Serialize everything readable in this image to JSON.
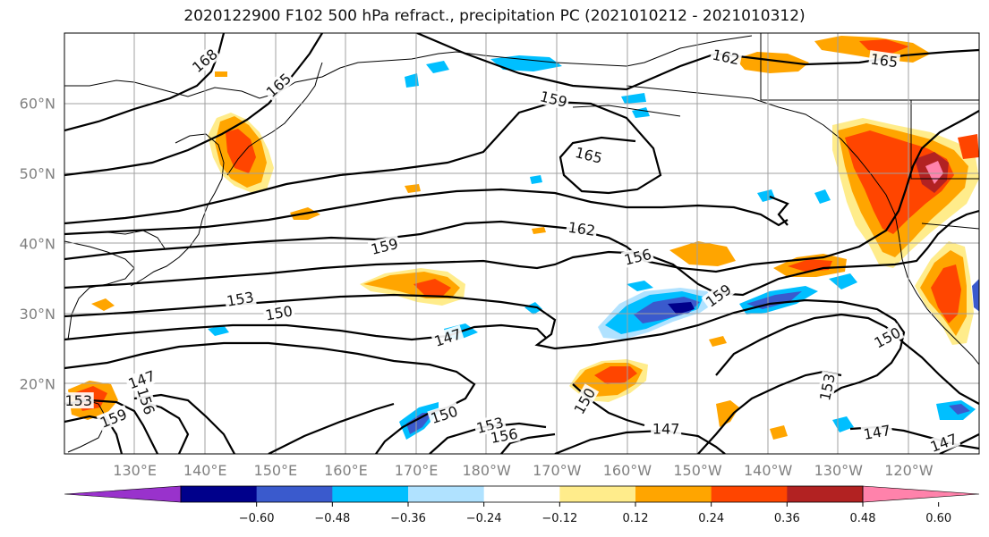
{
  "title": "2020122900 F102 500 hPa refract., precipitation PC (2021010212 - 2021010312)",
  "map": {
    "lon_range": [
      120,
      250
    ],
    "lat_range": [
      10,
      70
    ],
    "projection": "plate carree"
  },
  "lat_labels": [
    {
      "lat": 60,
      "text": "60°N"
    },
    {
      "lat": 50,
      "text": "50°N"
    },
    {
      "lat": 40,
      "text": "40°N"
    },
    {
      "lat": 30,
      "text": "30°N"
    },
    {
      "lat": 20,
      "text": "20°N"
    }
  ],
  "lon_labels": [
    {
      "lon": 130,
      "text": "130°E"
    },
    {
      "lon": 140,
      "text": "140°E"
    },
    {
      "lon": 150,
      "text": "150°E"
    },
    {
      "lon": 160,
      "text": "160°E"
    },
    {
      "lon": 170,
      "text": "170°E"
    },
    {
      "lon": 180,
      "text": "180°W"
    },
    {
      "lon": 190,
      "text": "170°W"
    },
    {
      "lon": 200,
      "text": "160°W"
    },
    {
      "lon": 210,
      "text": "150°W"
    },
    {
      "lon": 220,
      "text": "140°W"
    },
    {
      "lon": 230,
      "text": "130°W"
    },
    {
      "lon": 240,
      "text": "120°W"
    }
  ],
  "colorbar": {
    "colors": [
      "#9932cc",
      "#00008b",
      "#3a5acd",
      "#00bfff",
      "#b0e2ff",
      "#ffffff",
      "#ffec8b",
      "#ffa500",
      "#ff4500",
      "#b22222",
      "#ff82ab"
    ],
    "ticks": [
      "−0.60",
      "−0.48",
      "−0.36",
      "−0.24",
      "−0.12",
      "0.12",
      "0.24",
      "0.36",
      "0.48",
      "0.60"
    ]
  },
  "contour_labels": [
    {
      "text": "168",
      "lon": 140.0,
      "lat": 66.0,
      "rot": -40
    },
    {
      "text": "165",
      "lon": 150.5,
      "lat": 62.5,
      "rot": -42
    },
    {
      "text": "162",
      "lon": 214.0,
      "lat": 66.5,
      "rot": 12
    },
    {
      "text": "165",
      "lon": 236.5,
      "lat": 66.0,
      "rot": 8
    },
    {
      "text": "159",
      "lon": 189.5,
      "lat": 60.5,
      "rot": 14
    },
    {
      "text": "165",
      "lon": 194.5,
      "lat": 52.5,
      "rot": 14
    },
    {
      "text": "162",
      "lon": 193.5,
      "lat": 42.0,
      "rot": 8
    },
    {
      "text": "159",
      "lon": 165.5,
      "lat": 39.5,
      "rot": -14
    },
    {
      "text": "156",
      "lon": 201.5,
      "lat": 38.0,
      "rot": -14
    },
    {
      "text": "159",
      "lon": 213.0,
      "lat": 32.5,
      "rot": -36
    },
    {
      "text": "153",
      "lon": 145.0,
      "lat": 32.0,
      "rot": -10
    },
    {
      "text": "150",
      "lon": 150.5,
      "lat": 30.0,
      "rot": -10
    },
    {
      "text": "147",
      "lon": 174.5,
      "lat": 26.5,
      "rot": -18
    },
    {
      "text": "153",
      "lon": 228.5,
      "lat": 19.5,
      "rot": -78
    },
    {
      "text": "150",
      "lon": 237.0,
      "lat": 26.5,
      "rot": -28
    },
    {
      "text": "147",
      "lon": 131.0,
      "lat": 20.5,
      "rot": -20
    },
    {
      "text": "153",
      "lon": 122.0,
      "lat": 17.5,
      "rot": 0
    },
    {
      "text": "159",
      "lon": 127.0,
      "lat": 15.0,
      "rot": -22
    },
    {
      "text": "156",
      "lon": 131.5,
      "lat": 17.5,
      "rot": 72
    },
    {
      "text": "150",
      "lon": 174.0,
      "lat": 15.5,
      "rot": -18
    },
    {
      "text": "153",
      "lon": 180.5,
      "lat": 14.0,
      "rot": -14
    },
    {
      "text": "156",
      "lon": 182.5,
      "lat": 12.5,
      "rot": -10
    },
    {
      "text": "147",
      "lon": 205.5,
      "lat": 13.5,
      "rot": 0
    },
    {
      "text": "147",
      "lon": 235.5,
      "lat": 13.0,
      "rot": -10
    },
    {
      "text": "147",
      "lon": 245.0,
      "lat": 11.5,
      "rot": -20
    },
    {
      "text": "150",
      "lon": 194.0,
      "lat": 17.5,
      "rot": -60
    }
  ]
}
